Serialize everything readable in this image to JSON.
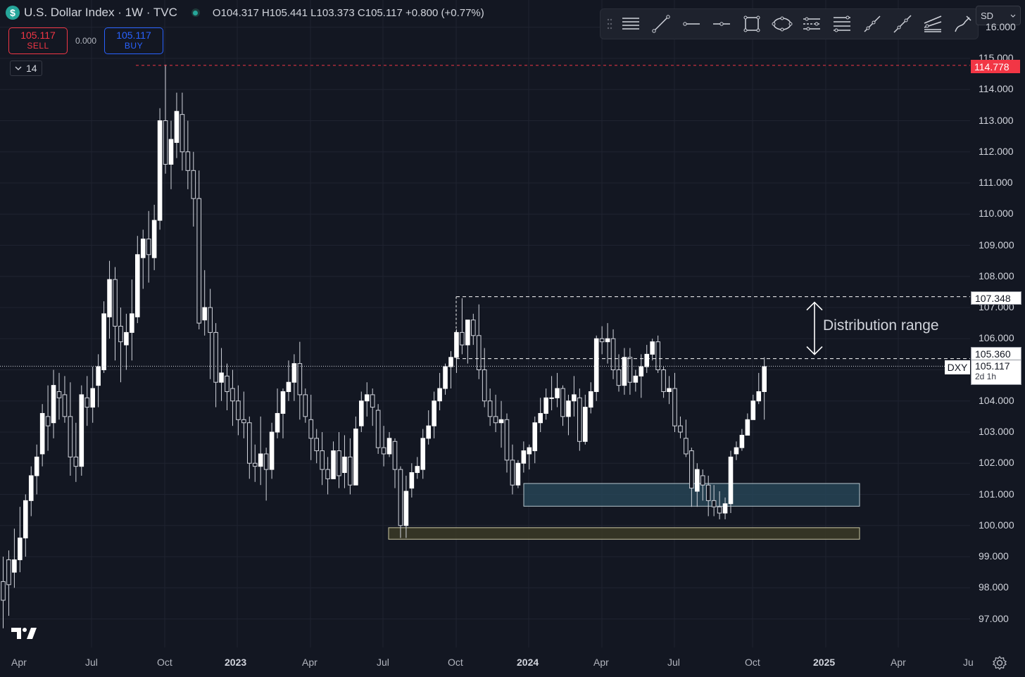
{
  "header": {
    "badge": "$",
    "title": "U.S. Dollar Index · 1W · TVC",
    "ohlc": "O104.317  H105.441  L103.373  C105.117  +0.800 (+0.77%)"
  },
  "trade": {
    "sell_price": "105.117",
    "sell_label": "SELL",
    "spread": "0.000",
    "buy_price": "105.117",
    "buy_label": "BUY"
  },
  "indicators_toggle": {
    "count": "14",
    "icon": "chevron-down-icon"
  },
  "toolbar": {
    "tools": [
      "horizontal-lines-icon",
      "trend-line-icon",
      "horizontal-ray-icon",
      "horizontal-line-icon",
      "rectangle-icon",
      "ellipse-icon",
      "parallel-channel-icon",
      "fib-retracement-icon",
      "ray-icon",
      "extended-line-icon",
      "regression-icon",
      "brush-icon"
    ]
  },
  "currency": {
    "label": "SD"
  },
  "price_axis": {
    "ticks": [
      "114.000",
      "113.000",
      "112.000",
      "111.000",
      "110.000",
      "109.000",
      "108.000",
      "107.000",
      "106.000",
      "104.000",
      "103.000",
      "102.000",
      "101.000",
      "100.000",
      "99.000",
      "98.000",
      "97.000"
    ],
    "top_partial": "16.000",
    "second_partial": "115.000"
  },
  "markers": {
    "high_level": "114.778",
    "range_top": "107.348",
    "range_mid": "105.360",
    "current_symbol": "DXY",
    "current_price": "105.117",
    "countdown": "2d 1h"
  },
  "annotation": "Distribution range",
  "time_axis": {
    "labels": [
      {
        "text": "Apr",
        "year": false
      },
      {
        "text": "Jul",
        "year": false
      },
      {
        "text": "Oct",
        "year": false
      },
      {
        "text": "2023",
        "year": true
      },
      {
        "text": "Apr",
        "year": false
      },
      {
        "text": "Jul",
        "year": false
      },
      {
        "text": "Oct",
        "year": false
      },
      {
        "text": "2024",
        "year": true
      },
      {
        "text": "Apr",
        "year": false
      },
      {
        "text": "Jul",
        "year": false
      },
      {
        "text": "Oct",
        "year": false
      },
      {
        "text": "2025",
        "year": true
      },
      {
        "text": "Apr",
        "year": false
      },
      {
        "text": "Ju",
        "year": false
      }
    ]
  },
  "zones": [
    {
      "name": "demand-zone-blue",
      "top": 101.35,
      "bottom": 100.62,
      "color": "#2a4b5c"
    },
    {
      "name": "demand-zone-olive",
      "top": 99.93,
      "bottom": 99.56,
      "color": "#3b3a26"
    }
  ],
  "chart_data": {
    "type": "candlestick",
    "symbol": "DXY",
    "interval": "1W",
    "ylim": [
      96.4,
      116.4
    ],
    "weeks": [
      [
        98.2,
        99.0,
        96.7,
        97.6
      ],
      [
        98.9,
        99.2,
        97.1,
        98.1
      ],
      [
        98.5,
        99.9,
        98.0,
        98.9
      ],
      [
        98.9,
        100.6,
        98.5,
        99.6
      ],
      [
        99.6,
        101.0,
        99.0,
        100.8
      ],
      [
        100.8,
        101.9,
        100.3,
        101.6
      ],
      [
        101.6,
        102.6,
        101.0,
        102.2
      ],
      [
        102.3,
        103.9,
        101.9,
        103.6
      ],
      [
        103.5,
        104.5,
        102.4,
        103.2
      ],
      [
        103.3,
        105.0,
        102.8,
        104.5
      ],
      [
        104.3,
        104.9,
        103.4,
        104.1
      ],
      [
        104.2,
        104.8,
        103.3,
        103.5
      ],
      [
        103.5,
        104.6,
        101.6,
        102.2
      ],
      [
        102.2,
        103.3,
        101.4,
        101.9
      ],
      [
        101.9,
        104.5,
        101.6,
        104.2
      ],
      [
        104.1,
        104.8,
        103.2,
        103.8
      ],
      [
        103.8,
        105.1,
        103.3,
        104.4
      ],
      [
        104.5,
        105.5,
        103.8,
        105.1
      ],
      [
        105.0,
        107.2,
        104.9,
        106.8
      ],
      [
        106.7,
        108.5,
        106.0,
        107.9
      ],
      [
        107.9,
        108.3,
        105.3,
        106.4
      ],
      [
        106.4,
        107.0,
        104.6,
        105.9
      ],
      [
        105.8,
        106.8,
        105.0,
        106.2
      ],
      [
        106.2,
        107.9,
        105.3,
        106.8
      ],
      [
        106.7,
        109.3,
        106.5,
        108.7
      ],
      [
        108.6,
        109.5,
        107.6,
        109.2
      ],
      [
        109.2,
        110.1,
        107.8,
        108.7
      ],
      [
        108.6,
        110.3,
        108.2,
        109.8
      ],
      [
        109.8,
        113.4,
        109.5,
        113.0
      ],
      [
        113.0,
        114.8,
        111.3,
        111.6
      ],
      [
        111.6,
        113.0,
        110.8,
        112.4
      ],
      [
        112.3,
        113.9,
        111.8,
        113.3
      ],
      [
        113.2,
        113.9,
        111.4,
        112.0
      ],
      [
        112.0,
        113.0,
        110.8,
        111.4
      ],
      [
        111.4,
        112.0,
        109.6,
        110.5
      ],
      [
        110.5,
        111.4,
        106.3,
        106.5
      ],
      [
        106.6,
        108.2,
        106.1,
        107.0
      ],
      [
        107.0,
        107.6,
        104.7,
        106.2
      ],
      [
        106.2,
        106.5,
        103.8,
        104.6
      ],
      [
        104.6,
        105.7,
        104.0,
        104.9
      ],
      [
        104.8,
        105.2,
        103.7,
        104.3
      ],
      [
        104.4,
        105.0,
        103.2,
        104.0
      ],
      [
        104.0,
        104.5,
        102.9,
        103.4
      ],
      [
        103.4,
        104.3,
        102.8,
        103.3
      ],
      [
        103.3,
        103.5,
        101.5,
        102.0
      ],
      [
        102.0,
        102.6,
        101.4,
        101.9
      ],
      [
        101.9,
        103.5,
        101.3,
        102.3
      ],
      [
        102.3,
        102.5,
        100.8,
        101.8
      ],
      [
        101.8,
        103.3,
        101.5,
        103.0
      ],
      [
        103.0,
        104.4,
        102.8,
        103.6
      ],
      [
        103.6,
        104.4,
        102.8,
        104.3
      ],
      [
        104.3,
        105.3,
        104.0,
        104.6
      ],
      [
        104.6,
        105.5,
        104.0,
        105.2
      ],
      [
        105.2,
        105.9,
        103.4,
        104.2
      ],
      [
        104.2,
        104.4,
        103.3,
        103.5
      ],
      [
        103.4,
        104.2,
        102.1,
        102.8
      ],
      [
        102.8,
        103.1,
        102.0,
        102.4
      ],
      [
        102.4,
        103.0,
        101.3,
        101.8
      ],
      [
        101.8,
        102.2,
        101.0,
        101.5
      ],
      [
        101.5,
        102.7,
        101.5,
        102.4
      ],
      [
        102.4,
        103.0,
        101.2,
        101.6
      ],
      [
        101.7,
        102.9,
        101.2,
        102.2
      ],
      [
        102.2,
        102.8,
        101.0,
        101.3
      ],
      [
        101.3,
        103.5,
        101.3,
        103.1
      ],
      [
        103.2,
        104.3,
        103.0,
        104.0
      ],
      [
        104.0,
        104.6,
        103.5,
        104.2
      ],
      [
        104.2,
        104.4,
        103.2,
        103.8
      ],
      [
        103.7,
        103.9,
        102.3,
        102.5
      ],
      [
        102.5,
        103.2,
        101.9,
        102.3
      ],
      [
        102.3,
        103.0,
        102.2,
        102.8
      ],
      [
        102.7,
        102.8,
        101.2,
        101.8
      ],
      [
        101.8,
        101.9,
        99.6,
        100.0
      ],
      [
        100.0,
        101.6,
        99.6,
        101.1
      ],
      [
        101.2,
        102.0,
        100.9,
        101.7
      ],
      [
        101.7,
        102.2,
        101.5,
        101.9
      ],
      [
        101.8,
        103.1,
        101.5,
        102.8
      ],
      [
        102.8,
        103.7,
        102.6,
        103.2
      ],
      [
        103.2,
        104.3,
        102.8,
        104.0
      ],
      [
        104.0,
        104.9,
        103.7,
        104.4
      ],
      [
        104.4,
        105.2,
        104.2,
        105.1
      ],
      [
        105.1,
        105.6,
        104.4,
        105.4
      ],
      [
        105.4,
        106.3,
        104.9,
        106.2
      ],
      [
        106.2,
        107.3,
        105.5,
        105.8
      ],
      [
        105.8,
        106.6,
        105.2,
        106.6
      ],
      [
        106.6,
        106.8,
        105.8,
        106.1
      ],
      [
        106.1,
        107.1,
        104.7,
        105.0
      ],
      [
        105.0,
        105.7,
        103.8,
        104.0
      ],
      [
        104.0,
        104.4,
        103.2,
        103.5
      ],
      [
        103.5,
        104.2,
        103.0,
        103.3
      ],
      [
        103.3,
        104.0,
        102.5,
        103.4
      ],
      [
        103.4,
        103.6,
        101.7,
        102.1
      ],
      [
        102.1,
        102.6,
        101.0,
        101.3
      ],
      [
        101.3,
        102.1,
        101.2,
        102.0
      ],
      [
        102.0,
        102.7,
        101.7,
        102.4
      ],
      [
        102.3,
        102.6,
        101.8,
        102.5
      ],
      [
        102.4,
        103.5,
        102.0,
        103.3
      ],
      [
        103.3,
        104.1,
        103.0,
        103.6
      ],
      [
        103.6,
        104.4,
        103.4,
        104.1
      ],
      [
        104.1,
        104.8,
        103.7,
        104.1
      ],
      [
        104.1,
        104.9,
        103.8,
        104.4
      ],
      [
        104.4,
        104.5,
        103.2,
        103.5
      ],
      [
        103.5,
        104.2,
        102.9,
        104.0
      ],
      [
        104.0,
        104.8,
        103.5,
        104.2
      ],
      [
        104.1,
        104.4,
        102.4,
        102.7
      ],
      [
        102.7,
        104.2,
        102.6,
        103.8
      ],
      [
        103.8,
        104.6,
        103.6,
        104.3
      ],
      [
        104.3,
        106.1,
        104.0,
        106.0
      ],
      [
        106.0,
        106.4,
        105.5,
        105.9
      ],
      [
        105.9,
        106.5,
        105.2,
        106.0
      ],
      [
        106.0,
        106.3,
        104.7,
        105.0
      ],
      [
        105.0,
        105.5,
        104.3,
        104.5
      ],
      [
        104.5,
        105.7,
        104.2,
        105.4
      ],
      [
        105.4,
        105.7,
        104.2,
        104.6
      ],
      [
        104.6,
        105.0,
        104.3,
        104.8
      ],
      [
        104.8,
        105.5,
        104.1,
        105.1
      ],
      [
        105.1,
        105.8,
        104.9,
        105.5
      ],
      [
        105.5,
        106.0,
        105.3,
        105.9
      ],
      [
        105.9,
        106.1,
        104.9,
        105.0
      ],
      [
        105.0,
        105.1,
        104.1,
        104.3
      ],
      [
        104.3,
        104.8,
        103.9,
        104.4
      ],
      [
        104.4,
        104.9,
        103.0,
        103.2
      ],
      [
        103.2,
        103.5,
        102.8,
        103.0
      ],
      [
        102.8,
        103.4,
        102.2,
        102.3
      ],
      [
        102.4,
        102.5,
        100.6,
        101.2
      ],
      [
        101.1,
        102.0,
        100.6,
        101.8
      ],
      [
        101.6,
        101.8,
        100.8,
        101.3
      ],
      [
        101.3,
        101.6,
        100.3,
        100.8
      ],
      [
        100.8,
        101.3,
        100.3,
        100.6
      ],
      [
        100.6,
        101.1,
        100.2,
        100.4
      ],
      [
        100.4,
        100.9,
        100.2,
        100.7
      ],
      [
        100.7,
        102.4,
        100.4,
        102.2
      ],
      [
        102.3,
        102.7,
        102.1,
        102.5
      ],
      [
        102.5,
        103.1,
        102.4,
        102.9
      ],
      [
        102.9,
        103.6,
        102.9,
        103.4
      ],
      [
        103.4,
        104.2,
        103.4,
        104.0
      ],
      [
        104.0,
        104.9,
        103.9,
        104.3
      ],
      [
        104.3,
        105.4,
        103.4,
        105.1
      ]
    ]
  }
}
